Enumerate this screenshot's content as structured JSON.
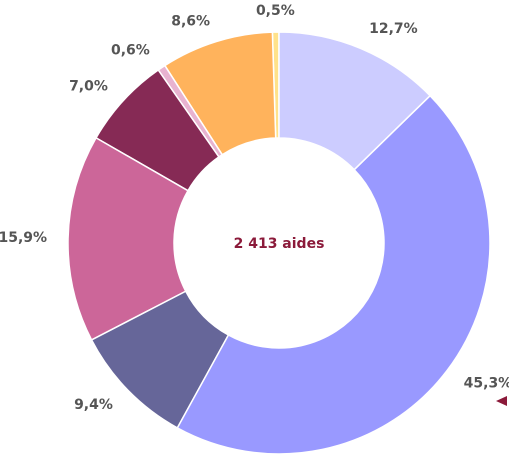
{
  "chart_data": {
    "type": "donut",
    "center_label": "2 413 aides",
    "values": [
      12.7,
      45.3,
      9.4,
      15.9,
      7.0,
      0.6,
      8.6,
      0.5
    ],
    "value_labels": [
      "12,7%",
      "45,3%",
      "9,4%",
      "15,9%",
      "7,0%",
      "0,6%",
      "8,6%",
      "0,5%"
    ],
    "colors": [
      "#ccccff",
      "#9999ff",
      "#666699",
      "#cc6699",
      "#862a55",
      "#e8b3d0",
      "#ffb35c",
      "#ffe28a"
    ]
  }
}
